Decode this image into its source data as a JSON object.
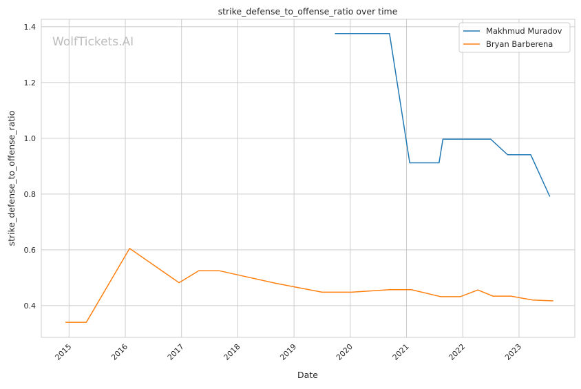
{
  "chart_data": {
    "type": "line",
    "title": "strike_defense_to_offense_ratio over time",
    "xlabel": "Date",
    "ylabel": "strike_defense_to_offense_ratio",
    "watermark": "WolfTickets.AI",
    "xlim": [
      "2014-07-05",
      "2023-12-29"
    ],
    "ylim": [
      0.286,
      1.427
    ],
    "x_ticks": [
      "2015",
      "2016",
      "2017",
      "2018",
      "2019",
      "2020",
      "2021",
      "2022",
      "2023"
    ],
    "y_ticks": [
      "0.4",
      "0.6",
      "0.8",
      "1.0",
      "1.2",
      "1.4"
    ],
    "grid": true,
    "legend_position": "top-right",
    "series": [
      {
        "name": "Makhmud Muradov",
        "color": "#1f77b4",
        "x": [
          "2019-09-23",
          "2020-09-12",
          "2021-01-22",
          "2021-07-31",
          "2021-08-25",
          "2022-07-01",
          "2022-10-19",
          "2023-03-18",
          "2023-07-20"
        ],
        "y": [
          1.376,
          1.376,
          0.912,
          0.912,
          0.997,
          0.997,
          0.941,
          0.941,
          0.791
        ]
      },
      {
        "name": "Bryan Barberena",
        "color": "#ff7f0e",
        "x": [
          "2014-12-09",
          "2015-04-23",
          "2016-01-29",
          "2016-12-16",
          "2017-04-23",
          "2017-09-02",
          "2018-09-02",
          "2019-07-02",
          "2020-01-08",
          "2020-09-12",
          "2021-02-02",
          "2021-08-11",
          "2021-12-16",
          "2022-04-09",
          "2022-07-16",
          "2022-11-10",
          "2023-03-29",
          "2023-08-11"
        ],
        "y": [
          0.34,
          0.34,
          0.605,
          0.482,
          0.525,
          0.525,
          0.48,
          0.448,
          0.448,
          0.457,
          0.457,
          0.432,
          0.432,
          0.456,
          0.434,
          0.434,
          0.42,
          0.417
        ]
      }
    ]
  }
}
